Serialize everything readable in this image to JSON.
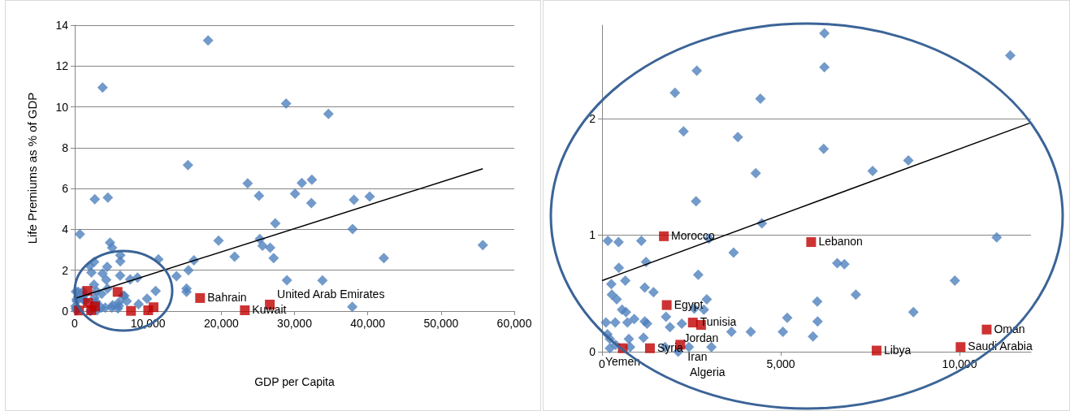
{
  "chart_data": [
    {
      "type": "scatter",
      "xlabel": "GDP per Capita",
      "ylabel": "Life Premiums as % of GDP",
      "grid": "y",
      "xlim": [
        0,
        60000
      ],
      "xticks": [
        0,
        {
          "value": 10000,
          "label": "10,000"
        },
        {
          "value": 20000,
          "label": "20,000"
        },
        {
          "value": 30000,
          "label": "30,000"
        },
        {
          "value": 40000,
          "label": "40,000"
        },
        {
          "value": 50000,
          "label": "50,000"
        },
        {
          "value": 60000,
          "label": "60,000"
        }
      ],
      "ylim": [
        0,
        14
      ],
      "yticks": [
        0,
        2,
        4,
        6,
        8,
        10,
        12,
        14
      ],
      "series": [
        {
          "color": "#4f81bd",
          "marker": "diamond",
          "x": [
            164,
            463,
            1100,
            1230,
            470,
            2690,
            260,
            276,
            1195,
            1440,
            2930,
            2850,
            110,
            5180,
            5060,
            4160,
            3620,
            5900,
            6020,
            6030,
            150,
            220,
            220,
            2130,
            3060,
            2650,
            2040,
            4430,
            2280,
            3800,
            4300,
            2630,
            4470,
            2990,
            3680,
            6220,
            6220,
            11420,
            6200,
            7570,
            8570,
            11040,
            6580,
            6780,
            9870,
            7100,
            8710,
            18200,
            3800,
            15450,
            23600,
            25150,
            2740,
            4520,
            700,
            4820,
            5100,
            19630,
            25260,
            25630,
            26670,
            21820,
            16260,
            15520,
            13890,
            15260,
            15260,
            28850,
            34630,
            32370,
            31000,
            30070,
            32300,
            38110,
            40260,
            27370,
            37930,
            27150,
            42190,
            55700,
            28960,
            33810,
            37890
          ],
          "values": [
            0.95,
            0.94,
            0.95,
            0.77,
            0.72,
            0.66,
            0.58,
            0.49,
            0.55,
            0.51,
            0.45,
            0.36,
            0.25,
            0.29,
            0.17,
            0.17,
            0.17,
            0.13,
            0.43,
            0.26,
            0.15,
            0.11,
            0.03,
            0,
            0.04,
            2.41,
            2.22,
            2.17,
            1.89,
            1.84,
            1.53,
            1.29,
            1.1,
            0.97,
            0.85,
            2.73,
            2.44,
            2.54,
            1.74,
            1.55,
            1.64,
            0.98,
            0.76,
            0.75,
            0.61,
            0.49,
            0.34,
            13.25,
            10.95,
            7.15,
            6.25,
            5.65,
            5.48,
            5.56,
            3.77,
            3.35,
            3.1,
            3.45,
            3.53,
            3.2,
            3.1,
            2.66,
            2.49,
            2.0,
            1.71,
            0.94,
            1.1,
            10.16,
            9.65,
            6.43,
            6.27,
            5.75,
            5.29,
            5.45,
            5.61,
            4.3,
            4.02,
            2.6,
            2.6,
            3.23,
            1.51,
            1.5,
            0.21
          ]
        },
        {
          "color": "#c00000",
          "marker": "square",
          "x": [
            1730,
            5850,
            1810,
            null,
            2770,
            null,
            null,
            580,
            2250,
            7680,
            10030,
            10760,
            17110,
            23220,
            26630
          ],
          "values": [
            0.99,
            0.94,
            0.4,
            null,
            0.23,
            null,
            null,
            0.03,
            0.04,
            0.01,
            0.04,
            0.19,
            0.64,
            0.04,
            0.32
          ]
        },
        {
          "type": "line",
          "color": "#000000",
          "marker": "none",
          "line_style": "solid",
          "x": [
            0,
            55700
          ],
          "values": [
            0.62,
            6.97
          ]
        }
      ],
      "annotations": [
        {
          "text": "Bahrain",
          "x": 17110,
          "y": 0.64
        },
        {
          "text": "Kuwait",
          "x": 23220,
          "y": 0.04
        },
        {
          "text": "United Arab Emirates",
          "x": 26630,
          "y": 0.32
        }
      ]
    },
    {
      "type": "scatter",
      "grid": "y",
      "xlim": [
        0,
        12000
      ],
      "xticks": [
        0,
        {
          "value": 5000,
          "label": "5,000"
        },
        {
          "value": 10000,
          "label": "10,000"
        }
      ],
      "ylim": [
        0,
        2.8
      ],
      "yticks": [
        0,
        1,
        2
      ],
      "series": [
        {
          "color": "#4f81bd",
          "marker": "diamond",
          "x": [
            164,
            463,
            1100,
            1230,
            470,
            650,
            2690,
            260,
            276,
            410,
            1195,
            1440,
            2930,
            2580,
            2850,
            560,
            670,
            1790,
            900,
            1195,
            110,
            370,
            710,
            1260,
            2230,
            1900,
            5180,
            5060,
            4160,
            3620,
            5900,
            6020,
            6030,
            150,
            220,
            380,
            220,
            750,
            1160,
            1760,
            2130,
            2430,
            3060,
            785,
            2650,
            2040,
            4430,
            2280,
            3800,
            4300,
            2630,
            4470,
            2990,
            3680,
            6220,
            6220,
            11420,
            6200,
            7570,
            8570,
            11040,
            6580,
            6780,
            9870,
            7100,
            8710
          ],
          "values": [
            0.95,
            0.94,
            0.95,
            0.77,
            0.72,
            0.61,
            0.66,
            0.58,
            0.49,
            0.45,
            0.55,
            0.51,
            0.45,
            0.37,
            0.36,
            0.36,
            0.34,
            0.3,
            0.28,
            0.26,
            0.25,
            0.25,
            0.25,
            0.24,
            0.24,
            0.21,
            0.29,
            0.17,
            0.17,
            0.17,
            0.13,
            0.43,
            0.26,
            0.15,
            0.11,
            0.06,
            0.03,
            0.11,
            0.12,
            0.04,
            0,
            0.04,
            0.04,
            0.04,
            2.41,
            2.22,
            2.17,
            1.89,
            1.84,
            1.53,
            1.29,
            1.1,
            0.97,
            0.85,
            2.73,
            2.44,
            2.54,
            1.74,
            1.55,
            1.64,
            0.98,
            0.76,
            0.75,
            0.61,
            0.49,
            0.34
          ]
        },
        {
          "color": "#c00000",
          "marker": "square",
          "x": [
            1730,
            5850,
            1810,
            2540,
            2770,
            1340,
            2190,
            580,
            null,
            7680,
            10030,
            10760
          ],
          "values": [
            0.99,
            0.94,
            0.4,
            0.25,
            0.23,
            0.03,
            0.06,
            0.03,
            null,
            0.01,
            0.04,
            0.19
          ]
        },
        {
          "type": "line",
          "color": "#000000",
          "marker": "none",
          "line_style": "solid",
          "x": [
            0,
            11960
          ],
          "values": [
            0.61,
            1.96
          ]
        }
      ],
      "annotations": [
        {
          "text": "Morocco",
          "x": 1730,
          "y": 0.99
        },
        {
          "text": "Lebanon",
          "x": 5850,
          "y": 0.94
        },
        {
          "text": "Egypt",
          "x": 1810,
          "y": 0.4
        },
        {
          "text": "Tunisia",
          "x": 2540,
          "y": 0.25
        },
        {
          "text": "Jordan",
          "x": 2770,
          "y": 0.23
        },
        {
          "text": "Syria",
          "x": 1340,
          "y": 0.03
        },
        {
          "text": "Iran",
          "x": 2190,
          "y": 0.06
        },
        {
          "text": "Yemen",
          "x": 580,
          "y": 0.03
        },
        {
          "text": "Algeria",
          "x": 2250,
          "y": 0.04
        },
        {
          "text": "Libya",
          "x": 7680,
          "y": 0.01
        },
        {
          "text": "Saudi Arabia",
          "x": 10030,
          "y": 0.04
        },
        {
          "text": "Oman",
          "x": 10760,
          "y": 0.19
        }
      ]
    }
  ]
}
